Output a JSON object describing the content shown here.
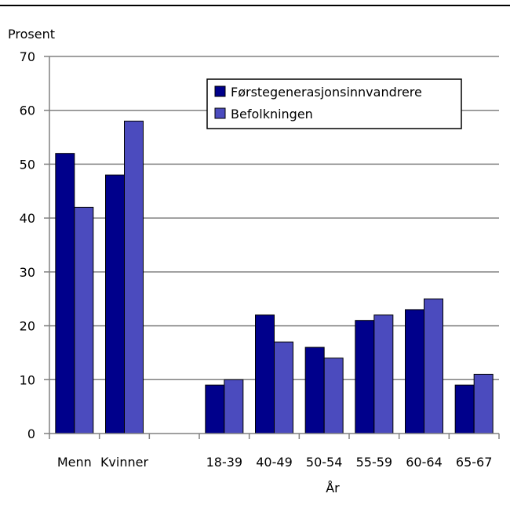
{
  "chart_data": {
    "type": "bar",
    "ylabel": "Prosent",
    "xlabel": "År",
    "ylim": [
      0,
      70
    ],
    "yticks": [
      0,
      10,
      20,
      30,
      40,
      50,
      60,
      70
    ],
    "grid": true,
    "legend_position": "top-right",
    "categories": [
      "Menn",
      "Kvinner",
      "",
      "18-39",
      "40-49",
      "50-54",
      "55-59",
      "60-64",
      "65-67"
    ],
    "series": [
      {
        "name": "Førstegenerasjonsinnvandrere",
        "color": "#00008B",
        "values": [
          52,
          48,
          null,
          9,
          22,
          16,
          21,
          23,
          9
        ]
      },
      {
        "name": "Befolkningen",
        "color": "#4B4BBE",
        "values": [
          42,
          58,
          null,
          10,
          17,
          14,
          22,
          25,
          11
        ]
      }
    ]
  }
}
